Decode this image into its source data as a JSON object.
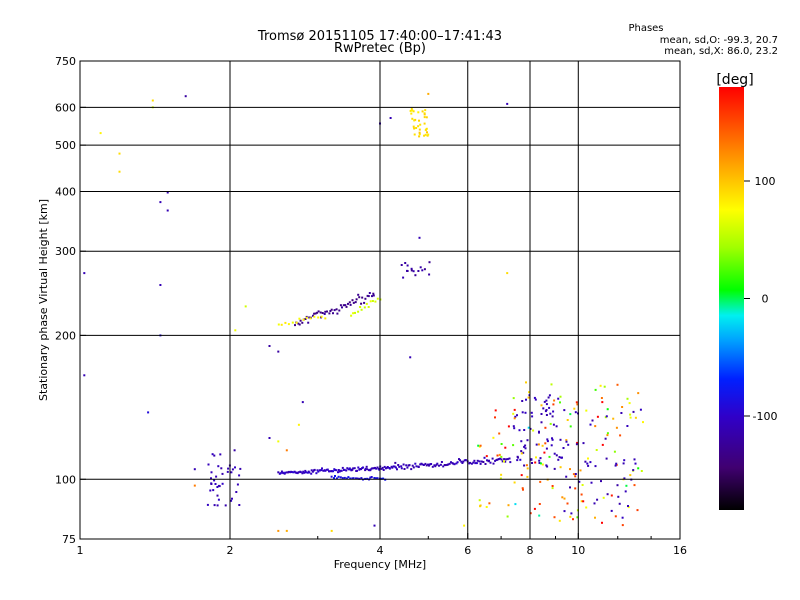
{
  "chart_data": {
    "type": "scatter",
    "title": "Tromsø 20151105 17:40:00–17:41:43",
    "subtitle": "RwPretec (Bp)",
    "xlabel": "Frequency [MHz]",
    "ylabel": "Stationary phase Virtual Height [km]",
    "x_scale": "log",
    "y_scale": "log",
    "xlim": [
      1,
      16
    ],
    "ylim": [
      75,
      750
    ],
    "x_ticks": [
      1,
      2,
      4,
      6,
      8,
      10,
      16
    ],
    "y_ticks": [
      75,
      100,
      200,
      300,
      400,
      500,
      600,
      750
    ],
    "x_grid": [
      2,
      4,
      6,
      8,
      10
    ],
    "y_grid": [
      100,
      200,
      300,
      400,
      500,
      600
    ],
    "stats": {
      "heading": "Phases",
      "line_o": "mean, sd,O: -99.3, 20.7",
      "line_x": "mean, sd,X:  86.0, 23.2"
    },
    "colorbar": {
      "label": "[deg]",
      "range": [
        -180,
        180
      ],
      "ticks": [
        100,
        0,
        -100
      ],
      "tick_labels": [
        "100",
        "0",
        "-100"
      ]
    },
    "groups": [
      {
        "type": "cloud",
        "fmin": 1.8,
        "fmax": 2.1,
        "hmin": 88,
        "hmax": 115,
        "n": 40,
        "c": -110
      },
      {
        "type": "trace",
        "f0": 2.5,
        "f1": 4.3,
        "h0": 103,
        "h1": 106,
        "n": 110,
        "sd": 1.5,
        "c": -105
      },
      {
        "type": "trace",
        "f0": 3.2,
        "f1": 4.1,
        "h0": 101,
        "h1": 100,
        "n": 30,
        "sd": 1.2,
        "c": -85
      },
      {
        "type": "trace",
        "f0": 4.3,
        "f1": 7.3,
        "h0": 106,
        "h1": 110,
        "n": 90,
        "sd": 2.5,
        "c": -110
      },
      {
        "type": "trace",
        "f0": 2.7,
        "f1": 3.9,
        "h0": 210,
        "h1": 245,
        "n": 55,
        "sd": 8,
        "c": -130
      },
      {
        "type": "trace",
        "f0": 2.5,
        "f1": 3.1,
        "h0": 210,
        "h1": 220,
        "n": 14,
        "sd": 4,
        "c": 80
      },
      {
        "type": "trace",
        "f0": 3.5,
        "f1": 4.0,
        "h0": 220,
        "h1": 240,
        "n": 14,
        "sd": 5,
        "c": 60
      },
      {
        "type": "cloud",
        "fmin": 4.6,
        "fmax": 5.0,
        "hmin": 520,
        "hmax": 600,
        "n": 35,
        "c": 90
      },
      {
        "type": "cloud",
        "fmin": 4.4,
        "fmax": 5.1,
        "hmin": 262,
        "hmax": 290,
        "n": 16,
        "c": -120
      },
      {
        "type": "cloud",
        "fmin": 7.4,
        "fmax": 9.3,
        "hmin": 105,
        "hmax": 150,
        "n": 70,
        "c": -110
      },
      {
        "type": "cloud",
        "fmin": 6.2,
        "fmax": 13.5,
        "hmin": 80,
        "hmax": 160,
        "n": 140,
        "c": 100,
        "cs": 150
      },
      {
        "type": "cloud",
        "fmin": 9.0,
        "fmax": 13.5,
        "hmin": 82,
        "hmax": 140,
        "n": 50,
        "c": -110
      }
    ],
    "points": [
      {
        "f": 1.02,
        "h": 270,
        "c": -110
      },
      {
        "f": 1.02,
        "h": 165,
        "c": -110
      },
      {
        "f": 1.1,
        "h": 530,
        "c": 80
      },
      {
        "f": 1.2,
        "h": 480,
        "c": 90
      },
      {
        "f": 1.2,
        "h": 440,
        "c": 90
      },
      {
        "f": 1.4,
        "h": 620,
        "c": 90
      },
      {
        "f": 1.4,
        "h": 600,
        "c": 60
      },
      {
        "f": 1.45,
        "h": 380,
        "c": -110
      },
      {
        "f": 1.5,
        "h": 398,
        "c": -110
      },
      {
        "f": 1.5,
        "h": 365,
        "c": -110
      },
      {
        "f": 1.45,
        "h": 255,
        "c": -110
      },
      {
        "f": 1.45,
        "h": 200,
        "c": -90
      },
      {
        "f": 1.37,
        "h": 138,
        "c": -90
      },
      {
        "f": 1.63,
        "h": 633,
        "c": -120
      },
      {
        "f": 2.05,
        "h": 205,
        "c": 70
      },
      {
        "f": 2.15,
        "h": 230,
        "c": 60
      },
      {
        "f": 2.4,
        "h": 190,
        "c": -120
      },
      {
        "f": 2.5,
        "h": 185,
        "c": -120
      },
      {
        "f": 2.4,
        "h": 122,
        "c": -110
      },
      {
        "f": 2.5,
        "h": 120,
        "c": 70
      },
      {
        "f": 2.6,
        "h": 115,
        "c": 130
      },
      {
        "f": 2.75,
        "h": 130,
        "c": 80
      },
      {
        "f": 2.8,
        "h": 145,
        "c": -110
      },
      {
        "f": 2.5,
        "h": 78,
        "c": 120
      },
      {
        "f": 2.6,
        "h": 78,
        "c": 110
      },
      {
        "f": 3.2,
        "h": 78,
        "c": 90
      },
      {
        "f": 3.9,
        "h": 80,
        "c": -110
      },
      {
        "f": 4.6,
        "h": 180,
        "c": -110
      },
      {
        "f": 4.8,
        "h": 320,
        "c": -110
      },
      {
        "f": 4.0,
        "h": 555,
        "c": -110
      },
      {
        "f": 4.2,
        "h": 570,
        "c": -110
      },
      {
        "f": 5.0,
        "h": 640,
        "c": 110
      },
      {
        "f": 7.2,
        "h": 610,
        "c": -110
      },
      {
        "f": 7.2,
        "h": 270,
        "c": 90
      },
      {
        "f": 5.9,
        "h": 80,
        "c": 80
      },
      {
        "f": 1.7,
        "h": 105,
        "c": -110
      },
      {
        "f": 1.7,
        "h": 97,
        "c": 130
      }
    ]
  }
}
